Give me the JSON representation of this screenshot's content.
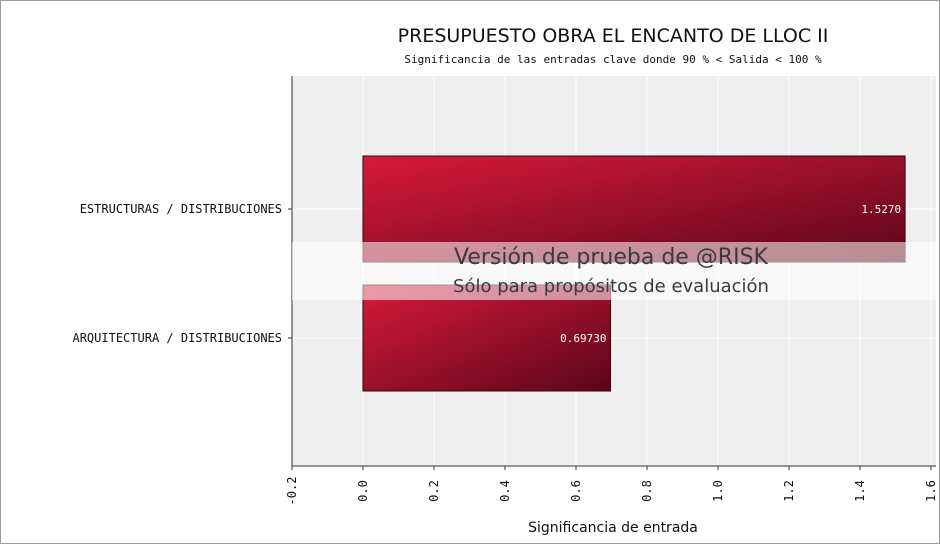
{
  "chart_data": {
    "type": "bar",
    "orientation": "horizontal",
    "title": "PRESUPUESTO OBRA EL ENCANTO DE LLOC II",
    "subtitle": "Significancia de las entradas clave donde 90 % < Salida < 100 %",
    "xlabel": "Significancia de entrada",
    "ylabel": "",
    "categories": [
      "ESTRUCTURAS / DISTRIBUCIONES",
      "ARQUITECTURA / DISTRIBUCIONES"
    ],
    "values": [
      1.527,
      0.6973
    ],
    "value_labels": [
      "1.5270",
      "0.69730"
    ],
    "xlim": [
      -0.2,
      1.6
    ],
    "xticks": [
      -0.2,
      0.0,
      0.2,
      0.4,
      0.6,
      0.8,
      1.0,
      1.2,
      1.4,
      1.6
    ],
    "xtick_labels": [
      "-0.2",
      "0.0",
      "0.2",
      "0.4",
      "0.6",
      "0.8",
      "1.0",
      "1.2",
      "1.4",
      "1.6"
    ],
    "grid": true,
    "legend": "none",
    "colors": {
      "bar_light": "#d81a3c",
      "bar_dark": "#5a0618",
      "plot_bg": "#efefef",
      "grid": "#ffffff"
    },
    "watermark": {
      "line1": "Versión de prueba de @RISK",
      "line2": "Sólo para propósitos de evaluación"
    }
  }
}
